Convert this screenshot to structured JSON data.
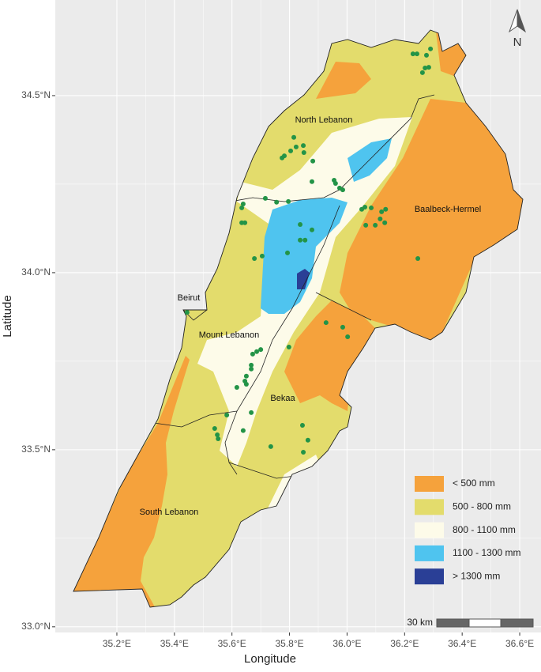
{
  "chart_data": {
    "type": "map",
    "x_label": "Longitude",
    "y_label": "Latitude",
    "xlim": [
      34.986,
      36.674
    ],
    "ylim": [
      32.984,
      34.77
    ],
    "xticks": [
      {
        "value": 35.2,
        "label": "35.2°E"
      },
      {
        "value": 35.4,
        "label": "35.4°E"
      },
      {
        "value": 35.6,
        "label": "35.6°E"
      },
      {
        "value": 35.8,
        "label": "35.8°E"
      },
      {
        "value": 36.0,
        "label": "36.0°E"
      },
      {
        "value": 36.2,
        "label": "36.2°E"
      },
      {
        "value": 36.4,
        "label": "36.4°E"
      },
      {
        "value": 36.6,
        "label": "36.6°E"
      }
    ],
    "yticks": [
      {
        "value": 33.0,
        "label": "33.0°N"
      },
      {
        "value": 33.5,
        "label": "33.5°N"
      },
      {
        "value": 34.0,
        "label": "34.0°N"
      },
      {
        "value": 34.5,
        "label": "34.5°N"
      }
    ],
    "grid": true,
    "legend": [
      {
        "name": "< 500 mm",
        "color": "#f5a23c"
      },
      {
        "name": "500 - 800 mm",
        "color": "#e3dc6c"
      },
      {
        "name": "800 - 1100 mm",
        "color": "#fdfbe9"
      },
      {
        "name": "1100 - 1300 mm",
        "color": "#4fc4ef"
      },
      {
        "name": "> 1300 mm",
        "color": "#2a3f96"
      }
    ],
    "regions": [
      "North Lebanon",
      "Baalbeck-Hermel",
      "Beirut",
      "Mount Lebanon",
      "Bekaa",
      "South Lebanon"
    ],
    "stations": {
      "color": "#239447",
      "lon": [
        36.229,
        36.243,
        36.29,
        36.276,
        36.271,
        36.262,
        36.284,
        35.815,
        35.823,
        35.782,
        35.774,
        35.804,
        35.848,
        35.85,
        35.881,
        35.878,
        35.955,
        35.96,
        35.974,
        35.985,
        35.639,
        35.634,
        35.716,
        35.755,
        35.796,
        35.634,
        35.645,
        35.837,
        35.878,
        35.837,
        35.854,
        35.793,
        35.705,
        35.678,
        36.051,
        36.062,
        36.084,
        36.12,
        36.134,
        36.115,
        36.131,
        36.065,
        36.098,
        36.246,
        35.444,
        35.927,
        35.985,
        36.002,
        35.798,
        35.7,
        35.686,
        35.672,
        35.667,
        35.667,
        35.65,
        35.645,
        35.65,
        35.617,
        35.667,
        35.582,
        35.639,
        35.54,
        35.549,
        35.552,
        35.735,
        35.845,
        35.864,
        35.848
      ],
      "lat": [
        34.618,
        34.618,
        34.632,
        34.614,
        34.578,
        34.565,
        34.58,
        34.382,
        34.355,
        34.33,
        34.324,
        34.344,
        34.359,
        34.339,
        34.315,
        34.257,
        34.261,
        34.252,
        34.239,
        34.234,
        34.194,
        34.183,
        34.21,
        34.199,
        34.201,
        34.141,
        34.141,
        34.136,
        34.121,
        34.092,
        34.092,
        34.056,
        34.047,
        34.04,
        34.179,
        34.185,
        34.183,
        34.172,
        34.179,
        34.152,
        34.141,
        34.134,
        34.134,
        34.04,
        33.888,
        33.859,
        33.846,
        33.819,
        33.79,
        33.783,
        33.777,
        33.77,
        33.739,
        33.728,
        33.708,
        33.694,
        33.685,
        33.676,
        33.605,
        33.598,
        33.554,
        33.56,
        33.542,
        33.531,
        33.509,
        33.569,
        33.527,
        33.493
      ]
    },
    "scale_label": "30 km",
    "north_label": "N"
  }
}
